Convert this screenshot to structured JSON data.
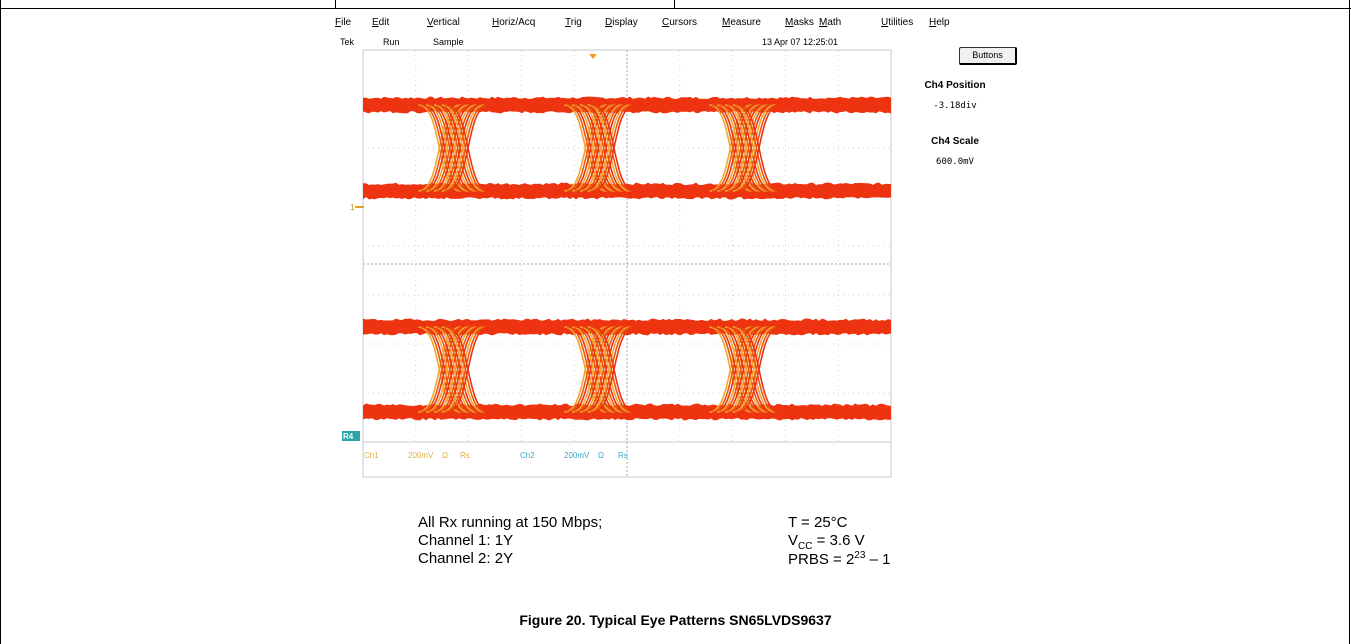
{
  "menu": [
    "File",
    "Edit",
    "Vertical",
    "Horiz/Acq",
    "Trig",
    "Display",
    "Cursors",
    "Measure",
    "Masks",
    "Math",
    "Utilities",
    "Help"
  ],
  "status": {
    "brand": "Tek",
    "state": "Run",
    "mode": "Sample",
    "datetime": "13 Apr 07 12:25:01"
  },
  "buttons_label": "Buttons",
  "side": {
    "pos_label": "Ch4 Position",
    "pos_value": "-3.18div",
    "scale_label": "Ch4 Scale",
    "scale_value": "600.0mV"
  },
  "markers": {
    "ch1": "1",
    "ch2": "R4"
  },
  "bottom_bar": {
    "ch1": "Ch1",
    "ch1_scale": "200mV",
    "ch1_coupling": "Ω",
    "ch1_term": "Rs",
    "ch2": "Ch2",
    "ch2_scale": "200mV",
    "ch2_coupling": "Ω",
    "ch2_term": "Rs"
  },
  "caption": {
    "l1": "All Rx running at 150 Mbps;",
    "l2": "Channel 1: 1Y",
    "l3": "Channel 2: 2Y",
    "r1": "T = 25°C",
    "r2_pre": "V",
    "r2_sub": "CC",
    "r2_post": " = 3.6 V",
    "r3_pre": "PRBS = 2",
    "r3_sup": "23",
    "r3_post": " – 1"
  },
  "figure_title": "Figure 20. Typical Eye Patterns SN65LVDS9637",
  "colors": {
    "trace": "#ee3311",
    "trace_dark": "#e85a10",
    "trace_light": "#f3a630",
    "grid": "#b8b8b8",
    "ch2_marker": "#2aa6a6",
    "trigger": "#f0a020"
  }
}
